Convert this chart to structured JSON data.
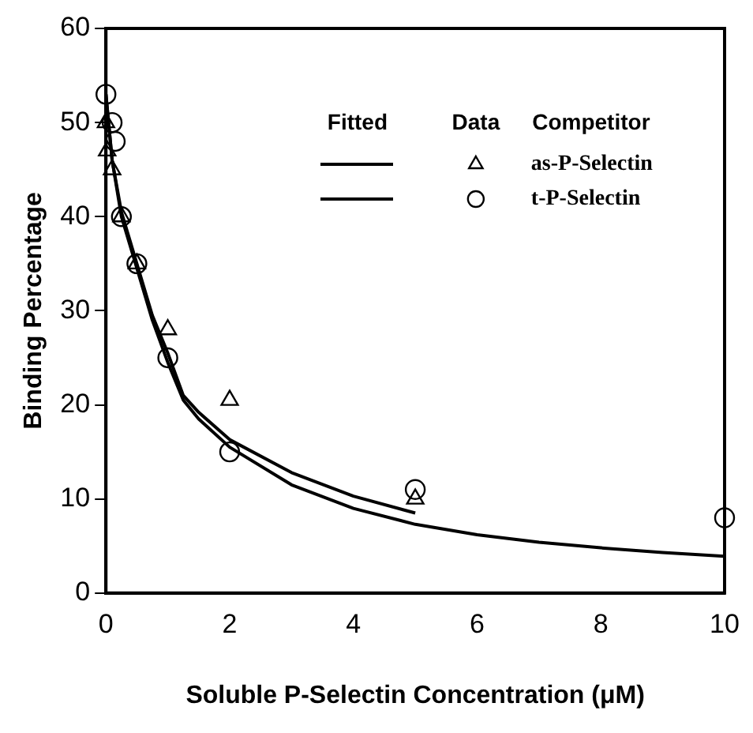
{
  "chart_data": {
    "type": "scatter",
    "xlabel": "Soluble P-Selectin Concentration (μM)",
    "ylabel": "Binding Percentage",
    "xlim": [
      0,
      10
    ],
    "xticks": [
      0,
      2,
      4,
      6,
      8,
      10
    ],
    "ylim": [
      0,
      60
    ],
    "yticks": [
      0,
      10,
      20,
      30,
      40,
      50,
      60
    ],
    "grid": false,
    "legend": "top right",
    "annotations": [
      "Fitted",
      "Data",
      "Competitor"
    ],
    "series": [
      {
        "type": "line",
        "color": "#000000",
        "marker": "none",
        "line_style": "solid",
        "x": [
          0,
          0.1,
          0.25,
          0.5,
          0.75,
          1,
          1.25,
          1.5,
          2,
          3,
          4,
          5
        ],
        "values": [
          53,
          46,
          40.5,
          35,
          29.5,
          25.5,
          21,
          19.2,
          16.3,
          12.8,
          10.3,
          8.5
        ]
      },
      {
        "type": "line",
        "color": "#000000",
        "marker": "none",
        "line_style": "solid",
        "x": [
          0,
          0.1,
          0.25,
          0.5,
          0.75,
          1,
          1.25,
          1.5,
          2,
          3,
          4,
          5,
          6,
          7,
          8,
          9,
          10
        ],
        "values": [
          53,
          46,
          40,
          34.5,
          29,
          24.5,
          20.5,
          18.5,
          15.5,
          11.5,
          9,
          7.3,
          6.2,
          5.4,
          4.8,
          4.3,
          3.9
        ]
      },
      {
        "name": "as-P-Selectin",
        "color": "#000000",
        "marker": "triangle",
        "x": [
          0,
          0.02,
          0.1,
          0.25,
          0.5,
          1,
          2,
          5
        ],
        "values": [
          50,
          47,
          45,
          40,
          35,
          28,
          20.5,
          10
        ]
      },
      {
        "name": "t-P-Selectin",
        "color": "#000000",
        "marker": "circle",
        "x": [
          0,
          0.1,
          0.15,
          0.25,
          0.5,
          1,
          2,
          5,
          10
        ],
        "values": [
          53,
          50,
          48,
          40,
          35,
          25,
          15,
          11,
          8
        ]
      }
    ]
  }
}
